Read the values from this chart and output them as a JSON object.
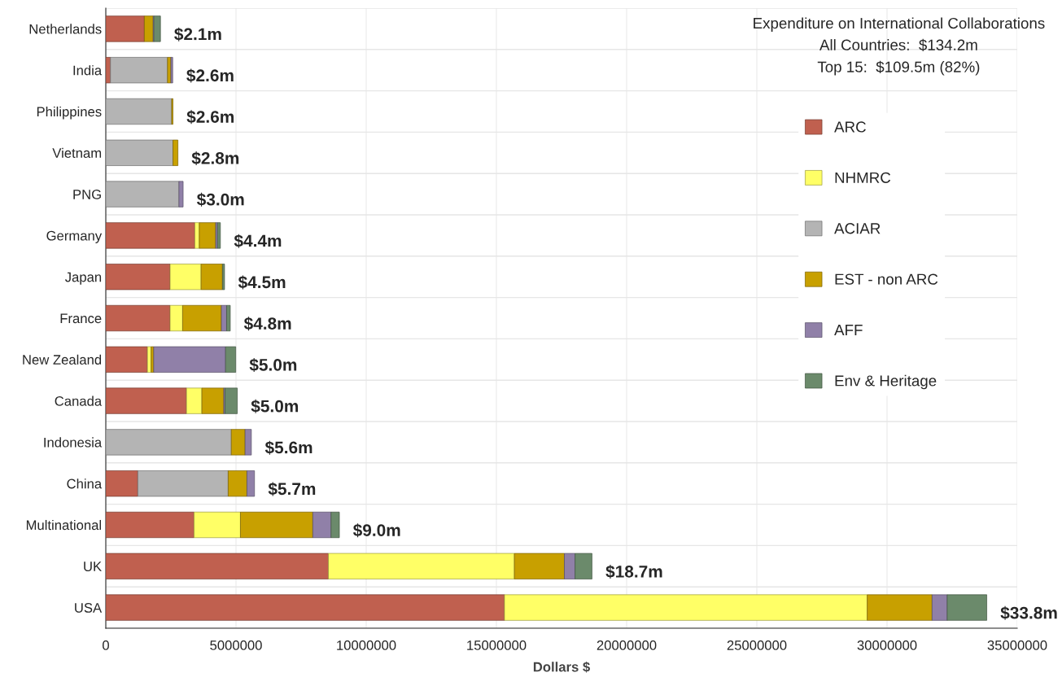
{
  "chart_data": {
    "type": "bar",
    "orientation": "horizontal",
    "stacked": true,
    "title": "Expenditure on International Collaborations",
    "annotations": [
      "All Countries:  $134.2m",
      "Top 15:  $109.5m (82%)"
    ],
    "xlabel": "Dollars $",
    "categories": [
      "Netherlands",
      "India",
      "Philippines",
      "Vietnam",
      "PNG",
      "Germany",
      "Japan",
      "France",
      "New Zealand",
      "Canada",
      "Indonesia",
      "China",
      "Multinational",
      "UK",
      "USA"
    ],
    "series": [
      {
        "name": "ARC",
        "color": "#c0604f",
        "values": [
          1480000,
          180000,
          null,
          0,
          0,
          3420000,
          2470000,
          2470000,
          1600000,
          3100000,
          0,
          1230000,
          3390000,
          8550000,
          15310000
        ]
      },
      {
        "name": "NHMRC",
        "color": "#ffff66",
        "values": [
          0,
          0,
          0,
          0,
          0,
          170000,
          1190000,
          480000,
          140000,
          590000,
          0,
          0,
          1780000,
          7140000,
          13930000
        ]
      },
      {
        "name": "ACIAR",
        "color": "#b4b4b4",
        "values": [
          0,
          2190000,
          2530000,
          2580000,
          2810000,
          0,
          0,
          0,
          0,
          0,
          4820000,
          3470000,
          0,
          0,
          0
        ]
      },
      {
        "name": "EST - non ARC",
        "color": "#c8a000",
        "values": [
          340000,
          130000,
          50000,
          190000,
          0,
          630000,
          820000,
          1490000,
          100000,
          840000,
          530000,
          720000,
          2780000,
          1920000,
          2490000
        ]
      },
      {
        "name": "AFF",
        "color": "#9080a8",
        "values": [
          30000,
          70000,
          0,
          0,
          160000,
          70000,
          0,
          200000,
          2760000,
          50000,
          240000,
          290000,
          700000,
          410000,
          580000
        ]
      },
      {
        "name": "Env & Heritage",
        "color": "#6b8a6b",
        "values": [
          250000,
          0,
          0,
          0,
          0,
          110000,
          80000,
          140000,
          390000,
          470000,
          0,
          0,
          320000,
          650000,
          1520000
        ]
      }
    ],
    "totals": [
      "$2.1m",
      "$2.6m",
      "$2.6m",
      "$2.8m",
      "$3.0m",
      "$4.4m",
      "$4.5m",
      "$4.8m",
      "$5.0m",
      "$5.0m",
      "$5.6m",
      "$5.7m",
      "$9.0m",
      "$18.7m",
      "$33.8m"
    ],
    "xlim": [
      0,
      35000000
    ],
    "xticks": [
      0,
      5000000,
      10000000,
      15000000,
      20000000,
      25000000,
      30000000,
      35000000
    ],
    "grid": true,
    "legend": "right"
  }
}
